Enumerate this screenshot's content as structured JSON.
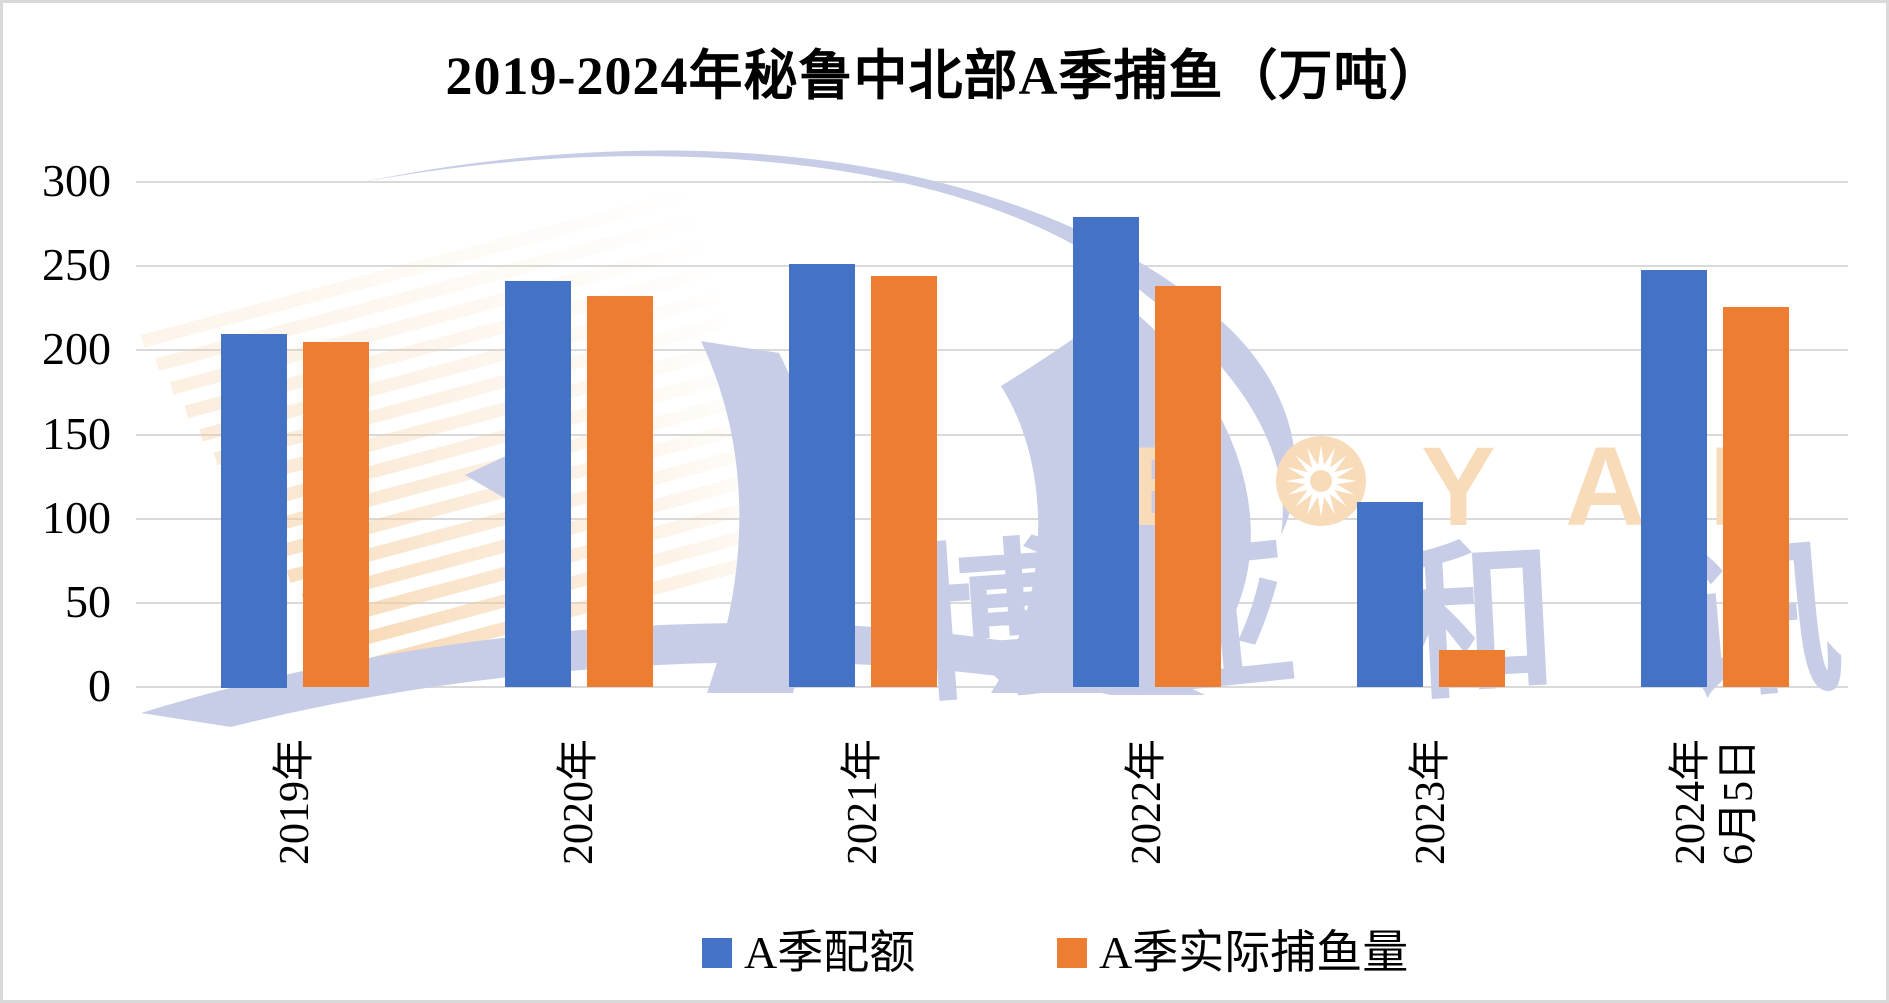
{
  "title": "2019-2024年秘鲁中北部A季捕鱼（万吨）",
  "chart_data": {
    "type": "bar",
    "categories": [
      "2019年",
      "2020年",
      "2021年",
      "2022年",
      "2023年",
      "2024年\n6月5日"
    ],
    "series": [
      {
        "name": "A季配额",
        "color": "#4472C4",
        "values": [
          210,
          241,
          251,
          279,
          110,
          248
        ]
      },
      {
        "name": "A季实际捕鱼量",
        "color": "#ED7D31",
        "values": [
          205,
          232,
          244,
          238,
          22,
          226
        ]
      }
    ],
    "title": "2019-2024年秘鲁中北部A季捕鱼（万吨）",
    "xlabel": "",
    "ylabel": "",
    "ylim": [
      0,
      300
    ],
    "yticks": [
      0,
      50,
      100,
      150,
      200,
      250,
      300
    ],
    "grid": true,
    "legend_position": "bottom",
    "x_tick_rotation": -90
  },
  "watermark": {
    "brand_text": "BOYAR",
    "brand_cjk": "博亚和讯",
    "lavender": "#C7CDE6",
    "light_orange_text": "#F8DCBA",
    "stripe_orange": "#F5CD9E",
    "sun_icon": "sun-star-icon"
  },
  "colors": {
    "background": "#FFFFFF",
    "frame": "#D9D9D9",
    "gridline": "#D9D9D9",
    "text": "#000000"
  }
}
